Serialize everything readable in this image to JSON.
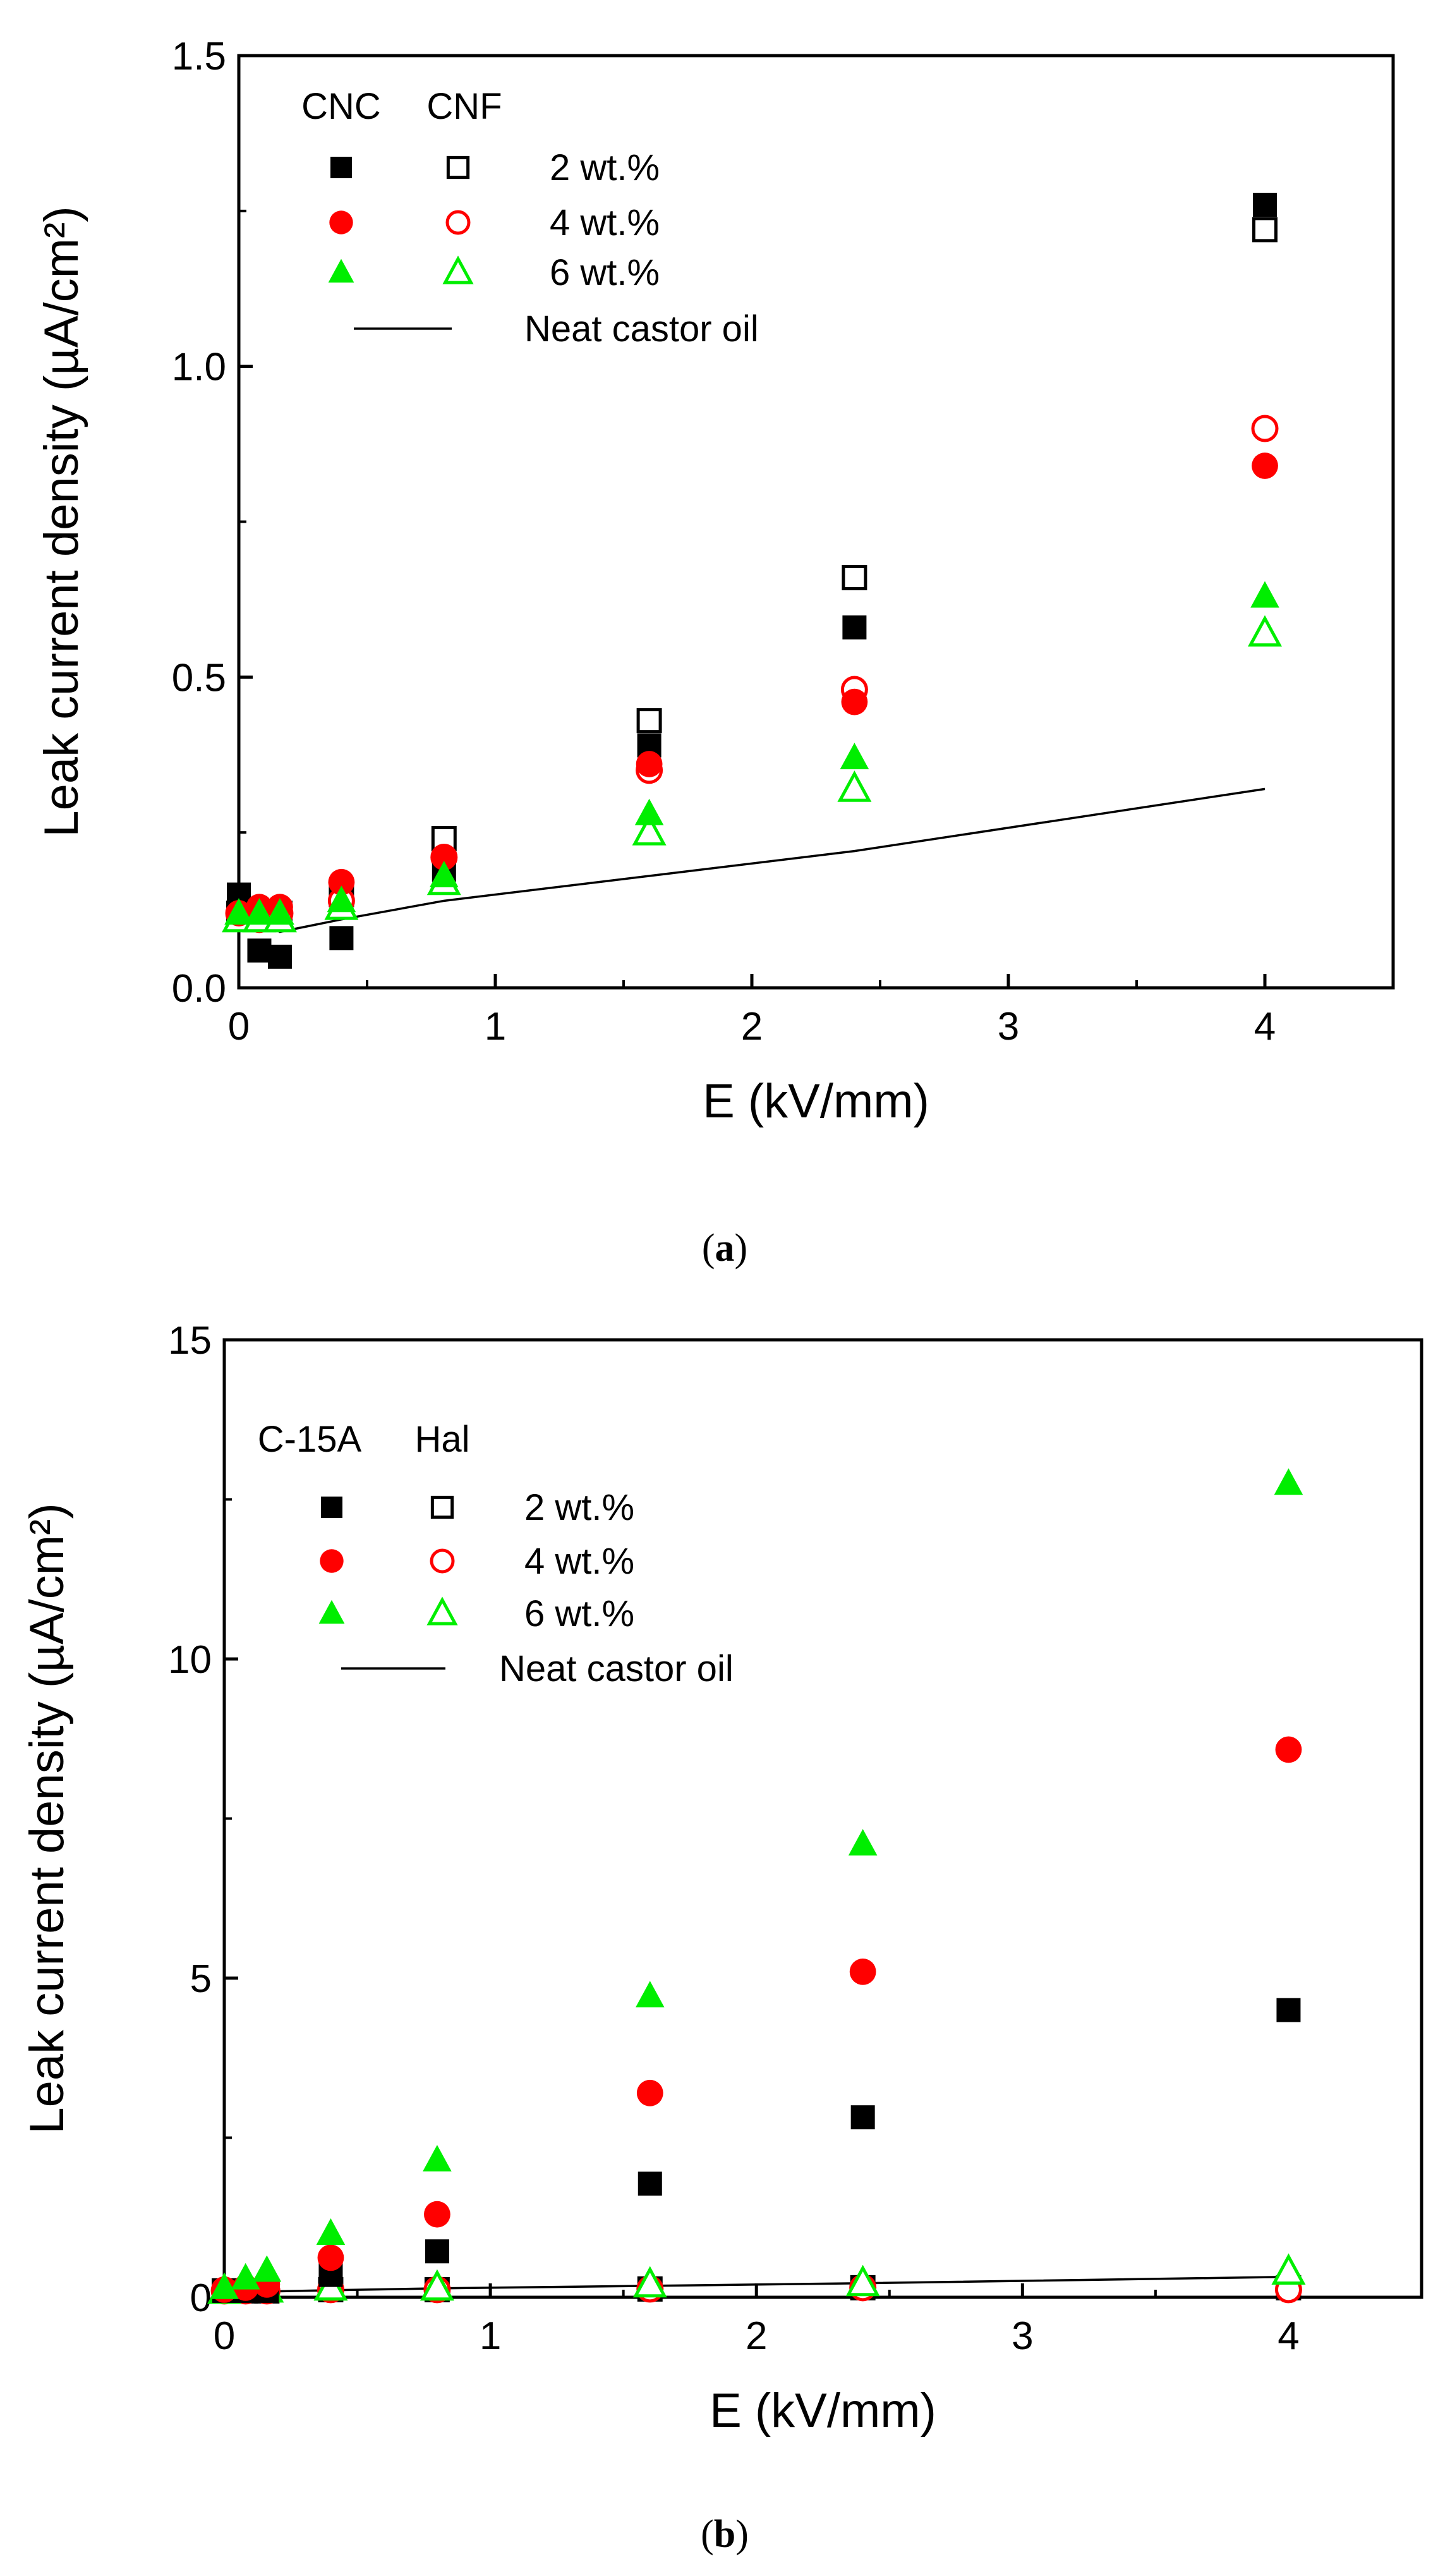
{
  "chart_data": [
    {
      "type": "scatter",
      "panel": "a",
      "caption": {
        "open": "(",
        "letter": "a",
        "close": ")"
      },
      "xlabel": "E (kV/mm)",
      "ylabel": "Leak current density (µA/cm²)",
      "xlim": [
        0,
        4.5
      ],
      "ylim": [
        0,
        1.5
      ],
      "xticks": [
        0,
        1,
        2,
        3,
        4
      ],
      "yticks": [
        0.0,
        0.5,
        1.0,
        1.5
      ],
      "ytick_labels": [
        "0.0",
        "0.5",
        "1.0",
        "1.5"
      ],
      "legend": {
        "headers": [
          "CNC",
          "CNF"
        ],
        "rows": [
          "2 wt.%",
          "4 wt.%",
          "6 wt.%"
        ],
        "line_label": "Neat castor oil",
        "position": "top-left"
      },
      "series": [
        {
          "name": "CNC 2 wt.%",
          "marker": "square",
          "filled": true,
          "color": "#000000",
          "x": [
            0,
            0.08,
            0.16,
            0.4,
            0.8,
            1.6,
            2.4,
            4.0
          ],
          "y": [
            0.15,
            0.06,
            0.05,
            0.08,
            0.19,
            0.39,
            0.58,
            1.26
          ]
        },
        {
          "name": "CNF 2 wt.%",
          "marker": "square",
          "filled": false,
          "color": "#000000",
          "x": [
            0,
            0.08,
            0.16,
            0.4,
            0.8,
            1.6,
            2.4,
            4.0
          ],
          "y": [
            0.12,
            0.11,
            0.12,
            0.15,
            0.24,
            0.43,
            0.66,
            1.22
          ]
        },
        {
          "name": "CNC 4 wt.%",
          "marker": "circle",
          "filled": true,
          "color": "#ff0000",
          "x": [
            0,
            0.08,
            0.16,
            0.4,
            0.8,
            1.6,
            2.4,
            4.0
          ],
          "y": [
            0.12,
            0.13,
            0.13,
            0.17,
            0.21,
            0.36,
            0.46,
            0.84
          ]
        },
        {
          "name": "CNF 4 wt.%",
          "marker": "circle",
          "filled": false,
          "color": "#ff0000",
          "x": [
            0,
            0.08,
            0.16,
            0.4,
            0.8,
            1.6,
            2.4,
            4.0
          ],
          "y": [
            0.12,
            0.11,
            0.12,
            0.14,
            0.21,
            0.35,
            0.48,
            0.9
          ]
        },
        {
          "name": "CNC 6 wt.%",
          "marker": "triangle",
          "filled": true,
          "color": "#00ee00",
          "x": [
            0,
            0.08,
            0.16,
            0.4,
            0.8,
            1.6,
            2.4,
            4.0
          ],
          "y": [
            0.12,
            0.12,
            0.12,
            0.14,
            0.18,
            0.28,
            0.37,
            0.63
          ]
        },
        {
          "name": "CNF 6 wt.%",
          "marker": "triangle",
          "filled": false,
          "color": "#00ee00",
          "x": [
            0,
            0.08,
            0.16,
            0.4,
            0.8,
            1.6,
            2.4,
            4.0
          ],
          "y": [
            0.11,
            0.11,
            0.11,
            0.13,
            0.17,
            0.25,
            0.32,
            0.57
          ]
        },
        {
          "name": "Neat castor oil",
          "marker": "line",
          "color": "#000000",
          "x": [
            0,
            0.16,
            0.4,
            0.8,
            1.6,
            2.4,
            4.0
          ],
          "y": [
            0.13,
            0.09,
            0.11,
            0.14,
            0.18,
            0.22,
            0.32
          ]
        }
      ]
    },
    {
      "type": "scatter",
      "panel": "b",
      "caption": {
        "open": "(",
        "letter": "b",
        "close": ")"
      },
      "xlabel": "E (kV/mm)",
      "ylabel": "Leak current density (µA/cm²)",
      "xlim": [
        0,
        4.5
      ],
      "ylim": [
        0,
        15
      ],
      "xticks": [
        0,
        1,
        2,
        3,
        4
      ],
      "yticks": [
        0,
        5,
        10,
        15
      ],
      "ytick_labels": [
        "0",
        "5",
        "10",
        "15"
      ],
      "legend": {
        "headers": [
          "C-15A",
          "Hal"
        ],
        "rows": [
          "2 wt.%",
          "4 wt.%",
          "6 wt.%"
        ],
        "line_label": "Neat castor oil",
        "position": "top-left"
      },
      "series": [
        {
          "name": "C-15A 2 wt.%",
          "marker": "square",
          "filled": true,
          "color": "#000000",
          "x": [
            0,
            0.08,
            0.16,
            0.4,
            0.8,
            1.6,
            2.4,
            4.0
          ],
          "y": [
            0.1,
            0.1,
            0.1,
            0.35,
            0.72,
            1.78,
            2.82,
            4.5
          ]
        },
        {
          "name": "Hal 2 wt.%",
          "marker": "square",
          "filled": false,
          "color": "#000000",
          "x": [
            0,
            0.08,
            0.16,
            0.4,
            0.8,
            1.6,
            2.4,
            4.0
          ],
          "y": [
            0.1,
            0.1,
            0.1,
            0.12,
            0.12,
            0.13,
            0.15,
            0.15
          ]
        },
        {
          "name": "C-15A 4 wt.%",
          "marker": "circle",
          "filled": true,
          "color": "#ff0000",
          "x": [
            0,
            0.08,
            0.16,
            0.4,
            0.8,
            1.6,
            2.4,
            4.0
          ],
          "y": [
            0.12,
            0.15,
            0.2,
            0.62,
            1.3,
            3.2,
            5.1,
            8.58
          ]
        },
        {
          "name": "Hal 4 wt.%",
          "marker": "circle",
          "filled": false,
          "color": "#ff0000",
          "x": [
            0,
            0.08,
            0.16,
            0.4,
            0.8,
            1.6,
            2.4,
            4.0
          ],
          "y": [
            0.1,
            0.1,
            0.1,
            0.12,
            0.12,
            0.13,
            0.15,
            0.12
          ]
        },
        {
          "name": "C-15A 6 wt.%",
          "marker": "triangle",
          "filled": true,
          "color": "#00ee00",
          "x": [
            0,
            0.08,
            0.16,
            0.4,
            0.8,
            1.6,
            2.4,
            4.0
          ],
          "y": [
            0.15,
            0.3,
            0.42,
            1.0,
            2.15,
            4.72,
            7.1,
            12.75
          ]
        },
        {
          "name": "Hal 6 wt.%",
          "marker": "triangle",
          "filled": false,
          "color": "#00ee00",
          "x": [
            0,
            0.08,
            0.16,
            0.4,
            0.8,
            1.6,
            2.4,
            4.0
          ],
          "y": [
            0.1,
            0.12,
            0.12,
            0.15,
            0.15,
            0.2,
            0.22,
            0.4
          ]
        },
        {
          "name": "Neat castor oil",
          "marker": "line",
          "color": "#000000",
          "x": [
            0,
            0.16,
            0.4,
            0.8,
            1.6,
            2.4,
            4.0
          ],
          "y": [
            0.05,
            0.09,
            0.11,
            0.14,
            0.18,
            0.22,
            0.32
          ]
        }
      ]
    }
  ]
}
